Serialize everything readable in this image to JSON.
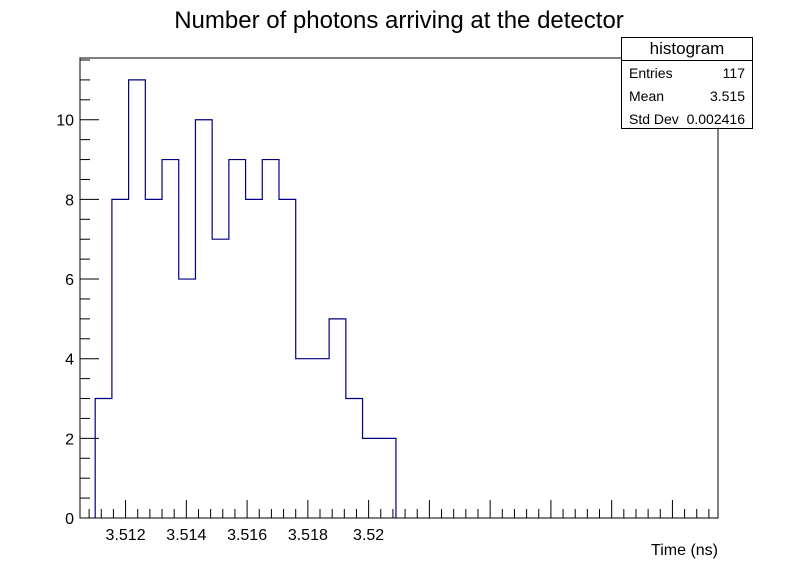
{
  "chart_data": {
    "type": "histogram",
    "title": "Number of photons arriving at the detector",
    "xlabel": "Time (ns)",
    "ylabel": "",
    "xlim": [
      3.5105,
      3.5315
    ],
    "ylim": [
      0,
      11.55
    ],
    "bin_edges": [
      3.511,
      3.51155,
      3.5121,
      3.51265,
      3.5132,
      3.51375,
      3.5143,
      3.51485,
      3.5154,
      3.51595,
      3.5165,
      3.51705,
      3.5176,
      3.51815,
      3.5187,
      3.51925,
      3.5198,
      3.52035,
      3.5209
    ],
    "counts": [
      3,
      8,
      11,
      8,
      9,
      6,
      10,
      7,
      9,
      8,
      9,
      8,
      4,
      4,
      5,
      3,
      2,
      2
    ],
    "x_major_ticks": [
      3.512,
      3.514,
      3.516,
      3.518,
      3.52
    ],
    "x_tick_labels": [
      "3.512",
      "3.514",
      "3.516",
      "3.518",
      "3.52"
    ],
    "y_major_ticks": [
      0,
      2,
      4,
      6,
      8,
      10
    ],
    "y_tick_labels": [
      "0",
      "2",
      "4",
      "6",
      "8",
      "10"
    ],
    "line_color": "#000080",
    "grid": false
  },
  "stats": {
    "title": "histogram",
    "rows": [
      {
        "label": "Entries",
        "value": "117"
      },
      {
        "label": "Mean",
        "value": "3.515"
      },
      {
        "label": "Std Dev",
        "value": "0.002416"
      }
    ]
  }
}
